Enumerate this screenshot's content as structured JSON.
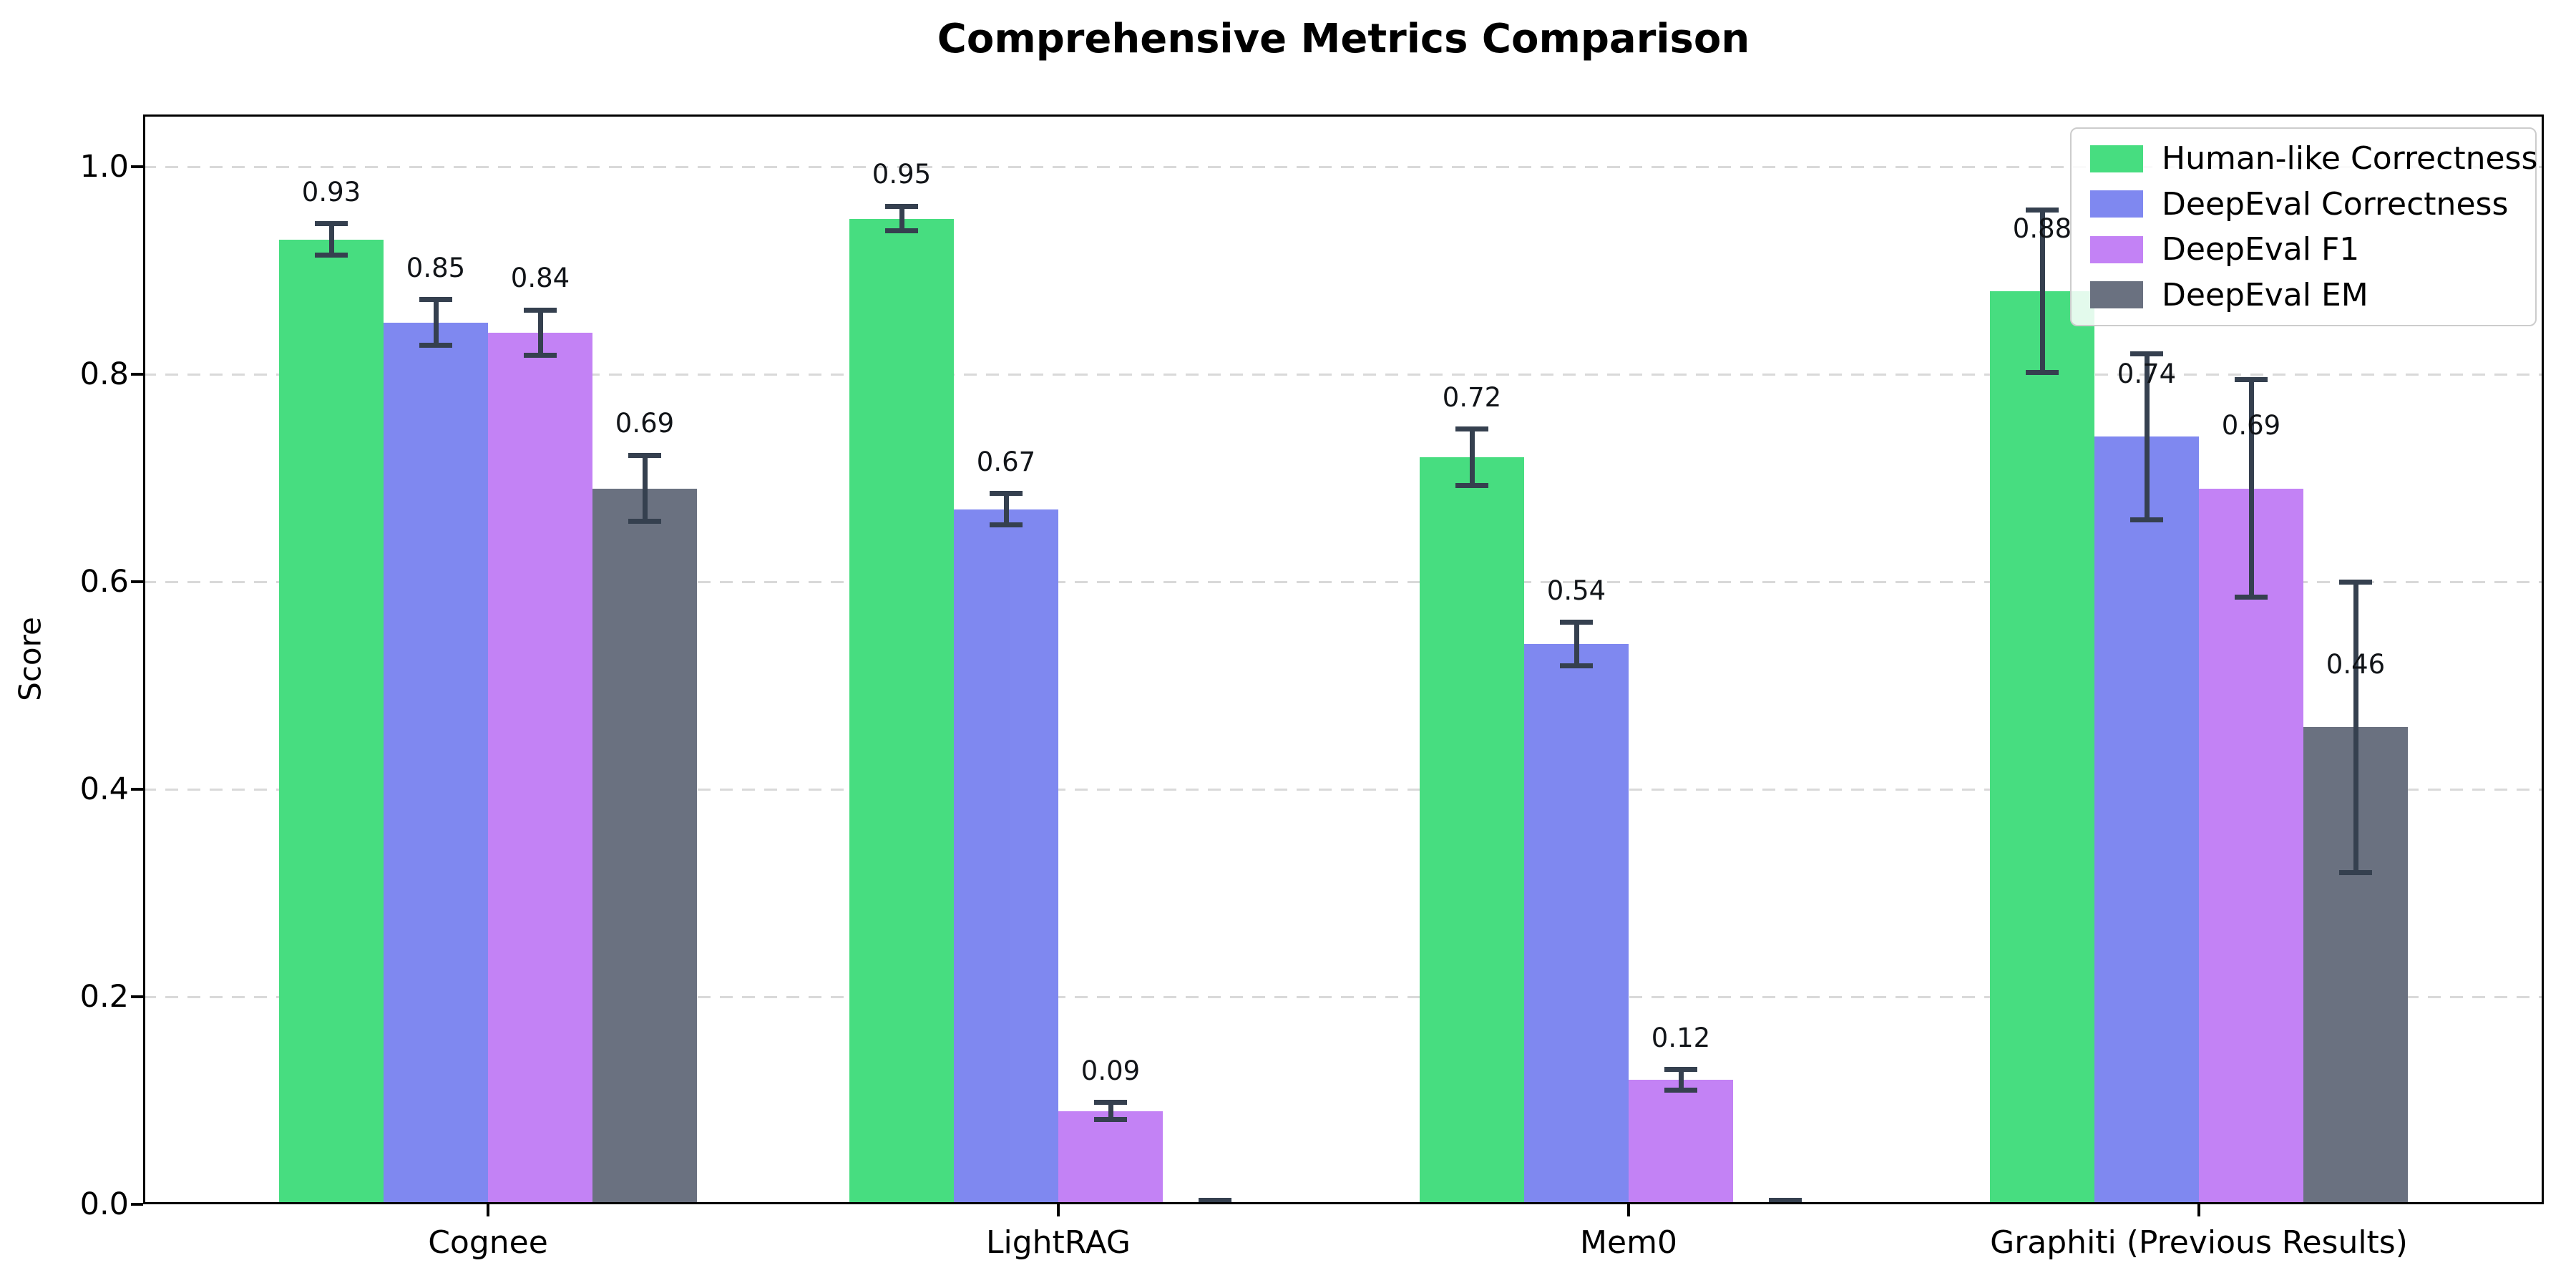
{
  "chart_data": {
    "type": "bar",
    "title": "Comprehensive Metrics Comparison",
    "xlabel": "",
    "ylabel": "Score",
    "categories": [
      "Cognee",
      "LightRAG",
      "Mem0",
      "Graphiti (Previous Results)"
    ],
    "series": [
      {
        "name": "Human-like Correctness",
        "color": "#47dd80",
        "values": [
          0.93,
          0.95,
          0.72,
          0.88
        ],
        "errors": [
          0.015,
          0.012,
          0.027,
          0.078
        ],
        "labels": [
          "0.93",
          "0.95",
          "0.72",
          "0.88"
        ]
      },
      {
        "name": "DeepEval Correctness",
        "color": "#7f88f0",
        "values": [
          0.85,
          0.67,
          0.54,
          0.74
        ],
        "errors": [
          0.022,
          0.015,
          0.021,
          0.08
        ],
        "labels": [
          "0.85",
          "0.67",
          "0.54",
          "0.74"
        ]
      },
      {
        "name": "DeepEval F1",
        "color": "#c382f5",
        "values": [
          0.84,
          0.09,
          0.12,
          0.69
        ],
        "errors": [
          0.022,
          0.008,
          0.01,
          0.105
        ],
        "labels": [
          "0.84",
          "0.09",
          "0.12",
          "0.69"
        ]
      },
      {
        "name": "DeepEval EM",
        "color": "#6a7180",
        "values": [
          0.69,
          0.0,
          0.0,
          0.46
        ],
        "errors": [
          0.032,
          0.004,
          0.004,
          0.14
        ],
        "labels": [
          "0.69",
          "",
          "",
          "0.46"
        ]
      }
    ],
    "y_ticks": [
      "0.0",
      "0.2",
      "0.4",
      "0.6",
      "0.8",
      "1.0"
    ],
    "y_tick_values": [
      0.0,
      0.2,
      0.4,
      0.6,
      0.8,
      1.0
    ],
    "ylim": [
      0,
      1.05
    ],
    "grid": "horizontal-dashed",
    "legend_position": "upper-right",
    "error_bar_color": "#35404f"
  }
}
